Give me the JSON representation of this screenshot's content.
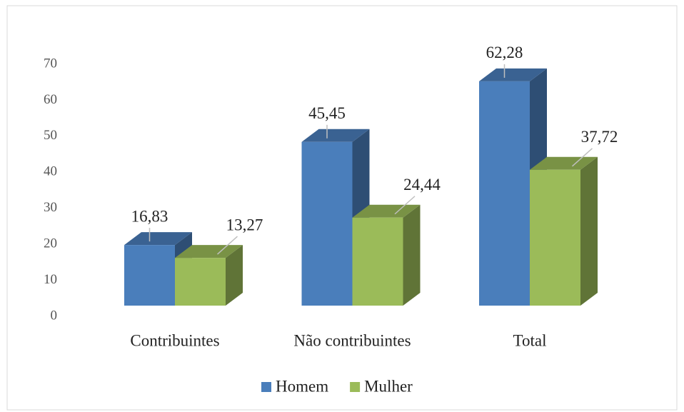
{
  "chart_data": {
    "type": "bar3d",
    "categories": [
      "Contribuintes",
      "Não contribuintes",
      "Total"
    ],
    "series": [
      {
        "name": "Homem",
        "color": "#4a7ebb",
        "values": [
          16.83,
          45.45,
          62.28
        ],
        "value_labels": [
          "16,83",
          "45,45",
          "62,28"
        ]
      },
      {
        "name": "Mulher",
        "color": "#9bbb59",
        "values": [
          13.27,
          24.44,
          37.72
        ],
        "value_labels": [
          "13,27",
          "24,44",
          "37,72"
        ]
      }
    ],
    "ylim": [
      0,
      70
    ],
    "yticks": [
      0,
      10,
      20,
      30,
      40,
      50,
      60,
      70
    ],
    "legend": "bottom"
  }
}
